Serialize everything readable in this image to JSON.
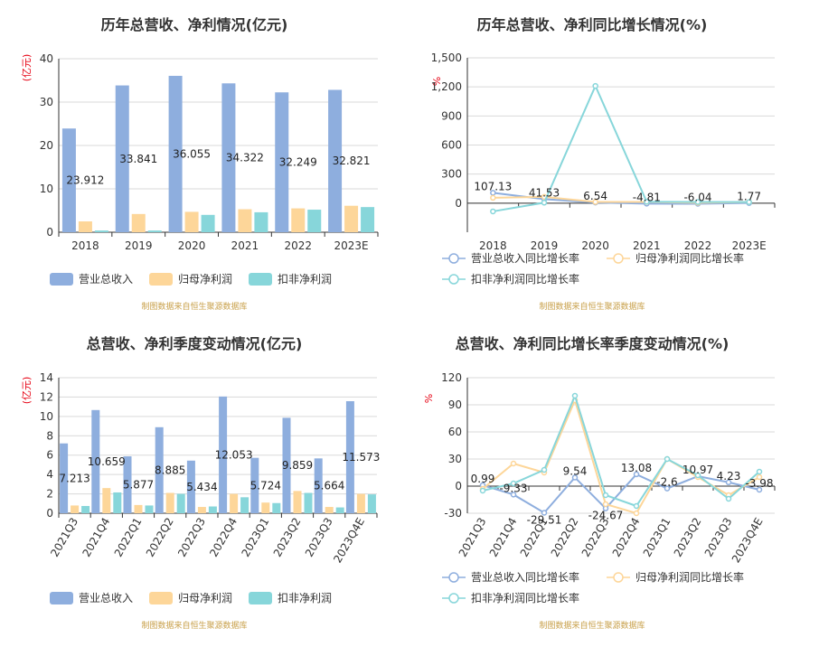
{
  "chart_data": [
    {
      "type": "bar",
      "title": "历年总营收、净利情况(亿元)",
      "ylabel": "(亿元)",
      "ylim": [
        0,
        40
      ],
      "yticks": [
        0,
        10,
        20,
        30,
        40
      ],
      "categories": [
        "2018",
        "2019",
        "2020",
        "2021",
        "2022",
        "2023E"
      ],
      "series": [
        {
          "name": "营业总收入",
          "color": "#8eaede",
          "values": [
            23.912,
            33.841,
            36.055,
            34.322,
            32.249,
            32.821
          ],
          "labels": [
            "23.912",
            "33.841",
            "36.055",
            "34.322",
            "32.249",
            "32.821"
          ]
        },
        {
          "name": "归母净利润",
          "color": "#fdd699",
          "values": [
            2.5,
            4.2,
            4.7,
            5.3,
            5.5,
            6.1
          ]
        },
        {
          "name": "扣非净利润",
          "color": "#87d6da",
          "values": [
            0.4,
            0.4,
            4.0,
            4.6,
            5.2,
            5.8
          ]
        }
      ],
      "source": "制图数据来自恒生聚源数据库"
    },
    {
      "type": "line",
      "title": "历年总营收、净利同比增长情况(%)",
      "ylabel": "%",
      "ylim": [
        -300,
        1500
      ],
      "yticks": [
        0,
        300,
        600,
        900,
        1200,
        1500
      ],
      "ytick_labels": [
        "0",
        "300",
        "600",
        "900",
        "1,200",
        "1,500"
      ],
      "categories": [
        "2018",
        "2019",
        "2020",
        "2021",
        "2022",
        "2023E"
      ],
      "series": [
        {
          "name": "营业总收入同比增长率",
          "color": "#8eaede",
          "values": [
            107.13,
            41.53,
            6.54,
            -4.81,
            -6.04,
            1.77
          ],
          "labels": [
            "107.13",
            "41.53",
            "6.54",
            "-4.81",
            "-6.04",
            "1.77"
          ]
        },
        {
          "name": "归母净利润同比增长率",
          "color": "#fdd699",
          "values": [
            55,
            65,
            12,
            13,
            4,
            11
          ]
        },
        {
          "name": "扣非净利润同比增长率",
          "color": "#87d6da",
          "values": [
            -85,
            5,
            1210,
            15,
            12,
            11
          ]
        }
      ],
      "source": "制图数据来自恒生聚源数据库"
    },
    {
      "type": "bar",
      "title": "总营收、净利季度变动情况(亿元)",
      "ylabel": "(亿元)",
      "ylim": [
        0,
        14
      ],
      "yticks": [
        0,
        2,
        4,
        6,
        8,
        10,
        12,
        14
      ],
      "categories": [
        "2021Q3",
        "2021Q4",
        "2022Q1",
        "2022Q2",
        "2022Q3",
        "2022Q4",
        "2023Q1",
        "2023Q2",
        "2023Q3",
        "2023Q4E"
      ],
      "series": [
        {
          "name": "营业总收入",
          "color": "#8eaede",
          "values": [
            7.213,
            10.659,
            5.877,
            8.885,
            5.434,
            12.053,
            5.724,
            9.859,
            5.664,
            11.573
          ],
          "labels": [
            "7.213",
            "10.659",
            "5.877",
            "8.885",
            "5.434",
            "12.053",
            "5.724",
            "9.859",
            "5.664",
            "11.573"
          ]
        },
        {
          "name": "归母净利润",
          "color": "#fdd699",
          "values": [
            0.8,
            2.6,
            0.85,
            2.1,
            0.65,
            2.0,
            1.1,
            2.3,
            0.65,
            2.0
          ]
        },
        {
          "name": "扣非净利润",
          "color": "#87d6da",
          "values": [
            0.75,
            2.15,
            0.8,
            2.0,
            0.7,
            1.65,
            1.05,
            2.1,
            0.6,
            1.95
          ]
        }
      ],
      "source": "制图数据来自恒生聚源数据库"
    },
    {
      "type": "line",
      "title": "总营收、净利同比增长率季度变动情况(%)",
      "ylabel": "%",
      "ylim": [
        -30,
        120
      ],
      "yticks": [
        -30,
        0,
        30,
        60,
        90,
        120
      ],
      "categories": [
        "2021Q3",
        "2021Q4",
        "2022Q1",
        "2022Q2",
        "2022Q3",
        "2022Q4",
        "2023Q1",
        "2023Q2",
        "2023Q3",
        "2023Q4E"
      ],
      "series": [
        {
          "name": "营业总收入同比增长率",
          "color": "#8eaede",
          "values": [
            0.99,
            -9.33,
            -29.51,
            9.54,
            -24.67,
            13.08,
            -2.6,
            10.97,
            4.23,
            -3.98
          ],
          "labels": [
            "0.99",
            "-9.33",
            "-29.51",
            "9.54",
            "-24.67",
            "13.08",
            "-2.6",
            "10.97",
            "4.23",
            "-3.98"
          ]
        },
        {
          "name": "归母净利润同比增长率",
          "color": "#fdd699",
          "values": [
            -3,
            25,
            15,
            95,
            -20,
            -30,
            30,
            10,
            -10,
            10
          ]
        },
        {
          "name": "扣非净利润同比增长率",
          "color": "#87d6da",
          "values": [
            -5,
            3,
            18,
            100,
            -10,
            -22,
            30,
            12,
            -14,
            16
          ]
        }
      ],
      "source": "制图数据来自恒生聚源数据库"
    }
  ]
}
